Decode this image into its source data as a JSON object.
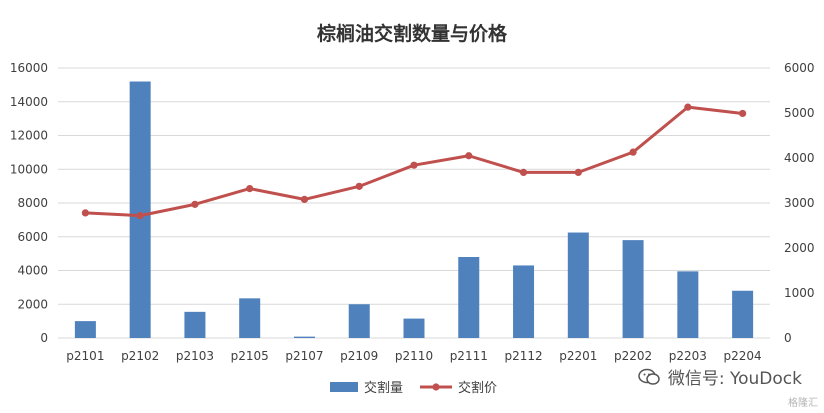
{
  "chart_data": {
    "type": "bar+line",
    "title": "棕榈油交割数量与价格",
    "categories": [
      "p2101",
      "p2102",
      "p2103",
      "p2105",
      "p2107",
      "p2109",
      "p2110",
      "p2111",
      "p2112",
      "p2201",
      "p2202",
      "p2203",
      "p2204"
    ],
    "series": [
      {
        "name": "交割量",
        "type": "bar",
        "axis": "left",
        "color": "#4f81bd",
        "values": [
          1000,
          15200,
          1550,
          2350,
          80,
          2000,
          1150,
          4800,
          4300,
          6250,
          5800,
          3950,
          2800
        ]
      },
      {
        "name": "交割价",
        "type": "line",
        "axis": "right",
        "color": "#c0504d",
        "values": [
          2780,
          2720,
          2970,
          3320,
          3080,
          3370,
          3840,
          4050,
          3680,
          3680,
          4130,
          5130,
          4990
        ]
      }
    ],
    "y_left": {
      "min": 0,
      "max": 16000,
      "ticks": [
        0,
        2000,
        4000,
        6000,
        8000,
        10000,
        12000,
        14000,
        16000
      ]
    },
    "y_right": {
      "min": 0,
      "max": 6000,
      "ticks": [
        0,
        1000,
        2000,
        3000,
        4000,
        5000,
        6000
      ]
    },
    "grid": true,
    "legend": "bottom"
  },
  "watermark": {
    "text": "微信号: YouDock",
    "icon": "wechat-icon"
  },
  "brand": "格隆汇"
}
